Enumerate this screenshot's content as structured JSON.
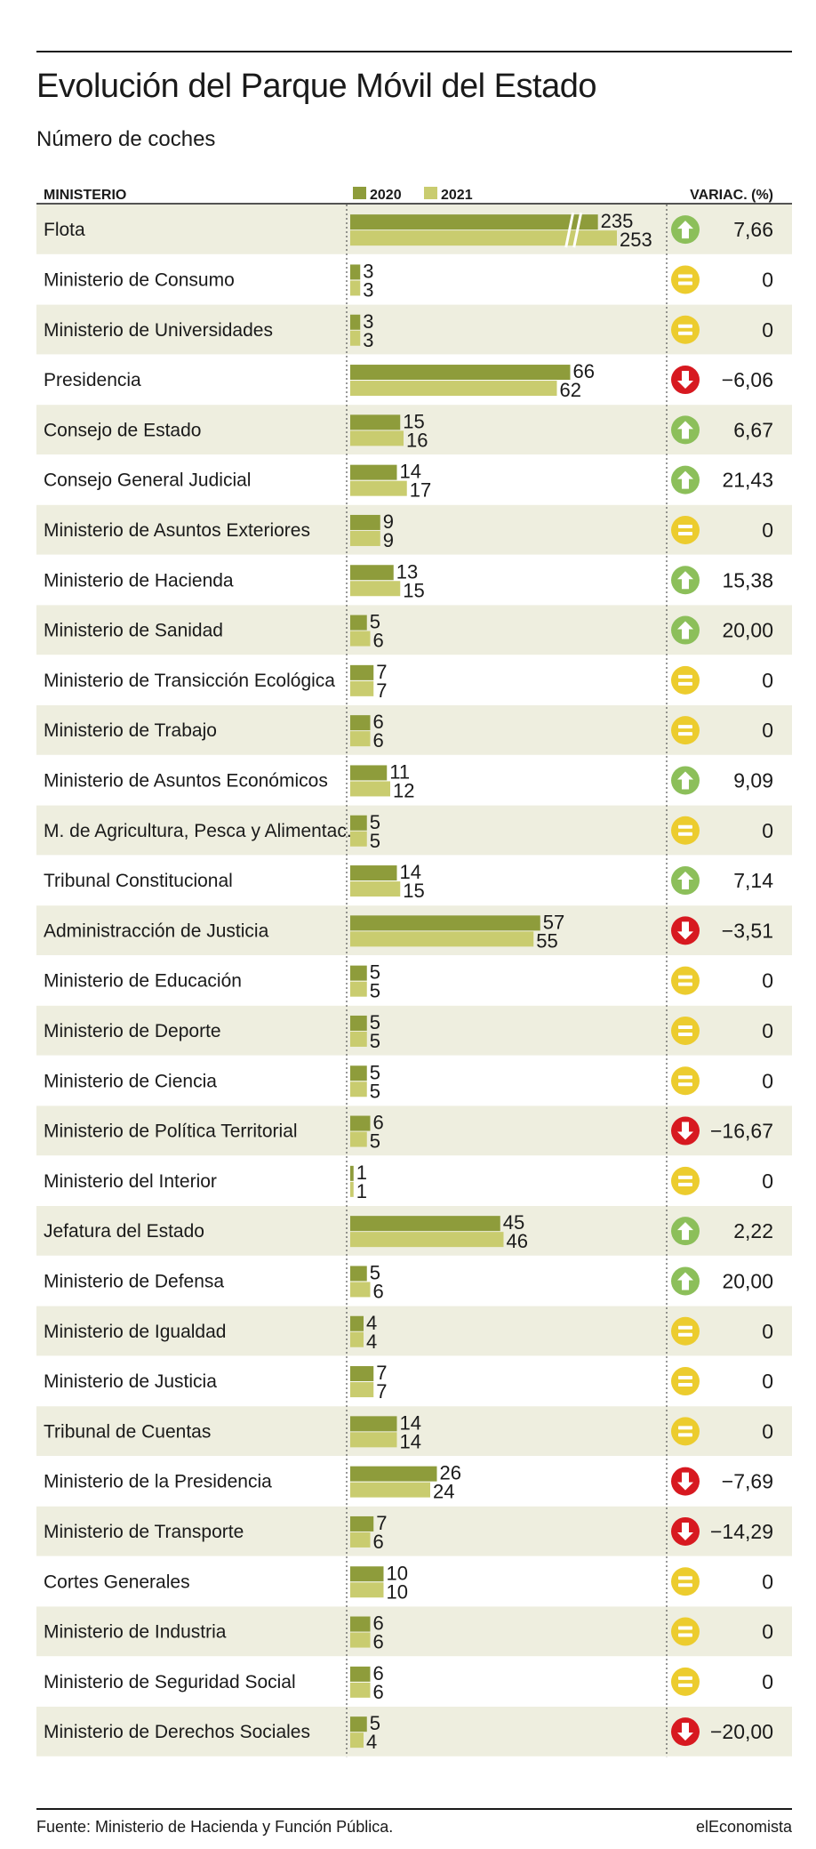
{
  "title": "Evolución del Parque Móvil del Estado",
  "subtitle": "Número de coches",
  "source": "Fuente: Ministerio de Hacienda y Función Pública.",
  "brand": "elEconomista",
  "colors": {
    "y2020": "#8e9c3b",
    "y2021": "#c9cc6f",
    "stripe": "#eeeedf",
    "up": "#8cbf5a",
    "equal": "#eccc2e",
    "down": "#d71920"
  },
  "chart_data": {
    "type": "bar",
    "header": {
      "category": "MINISTERIO",
      "variation": "VARIAC. (%)"
    },
    "series": [
      {
        "name": "2020"
      },
      {
        "name": "2021"
      }
    ],
    "axis_break": {
      "category": "Flota",
      "note": "truncated bars"
    },
    "rows": [
      {
        "label": "Flota",
        "v2020": 235,
        "v2021": 253,
        "variation": "7,66",
        "trend": "up"
      },
      {
        "label": "Ministerio de Consumo",
        "v2020": 3,
        "v2021": 3,
        "variation": "0",
        "trend": "equal"
      },
      {
        "label": "Ministerio de Universidades",
        "v2020": 3,
        "v2021": 3,
        "variation": "0",
        "trend": "equal"
      },
      {
        "label": "Presidencia",
        "v2020": 66,
        "v2021": 62,
        "variation": "−6,06",
        "trend": "down"
      },
      {
        "label": "Consejo de Estado",
        "v2020": 15,
        "v2021": 16,
        "variation": "6,67",
        "trend": "up"
      },
      {
        "label": "Consejo General Judicial",
        "v2020": 14,
        "v2021": 17,
        "variation": "21,43",
        "trend": "up"
      },
      {
        "label": "Ministerio de Asuntos Exteriores",
        "v2020": 9,
        "v2021": 9,
        "variation": "0",
        "trend": "equal"
      },
      {
        "label": "Ministerio de Hacienda",
        "v2020": 13,
        "v2021": 15,
        "variation": "15,38",
        "trend": "up"
      },
      {
        "label": "Ministerio de Sanidad",
        "v2020": 5,
        "v2021": 6,
        "variation": "20,00",
        "trend": "up"
      },
      {
        "label": "Ministerio de Transicción Ecológica",
        "v2020": 7,
        "v2021": 7,
        "variation": "0",
        "trend": "equal"
      },
      {
        "label": "Ministerio de Trabajo",
        "v2020": 6,
        "v2021": 6,
        "variation": "0",
        "trend": "equal"
      },
      {
        "label": "Ministerio de Asuntos Económicos",
        "v2020": 11,
        "v2021": 12,
        "variation": "9,09",
        "trend": "up"
      },
      {
        "label": "M. de Agricultura, Pesca y Alimentac.",
        "v2020": 5,
        "v2021": 5,
        "variation": "0",
        "trend": "equal"
      },
      {
        "label": "Tribunal Constitucional",
        "v2020": 14,
        "v2021": 15,
        "variation": "7,14",
        "trend": "up"
      },
      {
        "label": "Administracción de Justicia",
        "v2020": 57,
        "v2021": 55,
        "variation": "−3,51",
        "trend": "down"
      },
      {
        "label": "Ministerio de Educación",
        "v2020": 5,
        "v2021": 5,
        "variation": "0",
        "trend": "equal"
      },
      {
        "label": "Ministerio de Deporte",
        "v2020": 5,
        "v2021": 5,
        "variation": "0",
        "trend": "equal"
      },
      {
        "label": "Ministerio de Ciencia",
        "v2020": 5,
        "v2021": 5,
        "variation": "0",
        "trend": "equal"
      },
      {
        "label": "Ministerio de Política Territorial",
        "v2020": 6,
        "v2021": 5,
        "variation": "−16,67",
        "trend": "down"
      },
      {
        "label": "Ministerio del Interior",
        "v2020": 1,
        "v2021": 1,
        "variation": "0",
        "trend": "equal"
      },
      {
        "label": "Jefatura del Estado",
        "v2020": 45,
        "v2021": 46,
        "variation": "2,22",
        "trend": "up"
      },
      {
        "label": "Ministerio de Defensa",
        "v2020": 5,
        "v2021": 6,
        "variation": "20,00",
        "trend": "up"
      },
      {
        "label": "Ministerio de Igualdad",
        "v2020": 4,
        "v2021": 4,
        "variation": "0",
        "trend": "equal"
      },
      {
        "label": "Ministerio de Justicia",
        "v2020": 7,
        "v2021": 7,
        "variation": "0",
        "trend": "equal"
      },
      {
        "label": "Tribunal de Cuentas",
        "v2020": 14,
        "v2021": 14,
        "variation": "0",
        "trend": "equal"
      },
      {
        "label": "Ministerio de la Presidencia",
        "v2020": 26,
        "v2021": 24,
        "variation": "−7,69",
        "trend": "down"
      },
      {
        "label": "Ministerio de Transporte",
        "v2020": 7,
        "v2021": 6,
        "variation": "−14,29",
        "trend": "down"
      },
      {
        "label": "Cortes Generales",
        "v2020": 10,
        "v2021": 10,
        "variation": "0",
        "trend": "equal"
      },
      {
        "label": "Ministerio de Industria",
        "v2020": 6,
        "v2021": 6,
        "variation": "0",
        "trend": "equal"
      },
      {
        "label": "Ministerio de Seguridad Social",
        "v2020": 6,
        "v2021": 6,
        "variation": "0",
        "trend": "equal"
      },
      {
        "label": "Ministerio de Derechos Sociales",
        "v2020": 5,
        "v2021": 4,
        "variation": "−20,00",
        "trend": "down"
      }
    ]
  }
}
